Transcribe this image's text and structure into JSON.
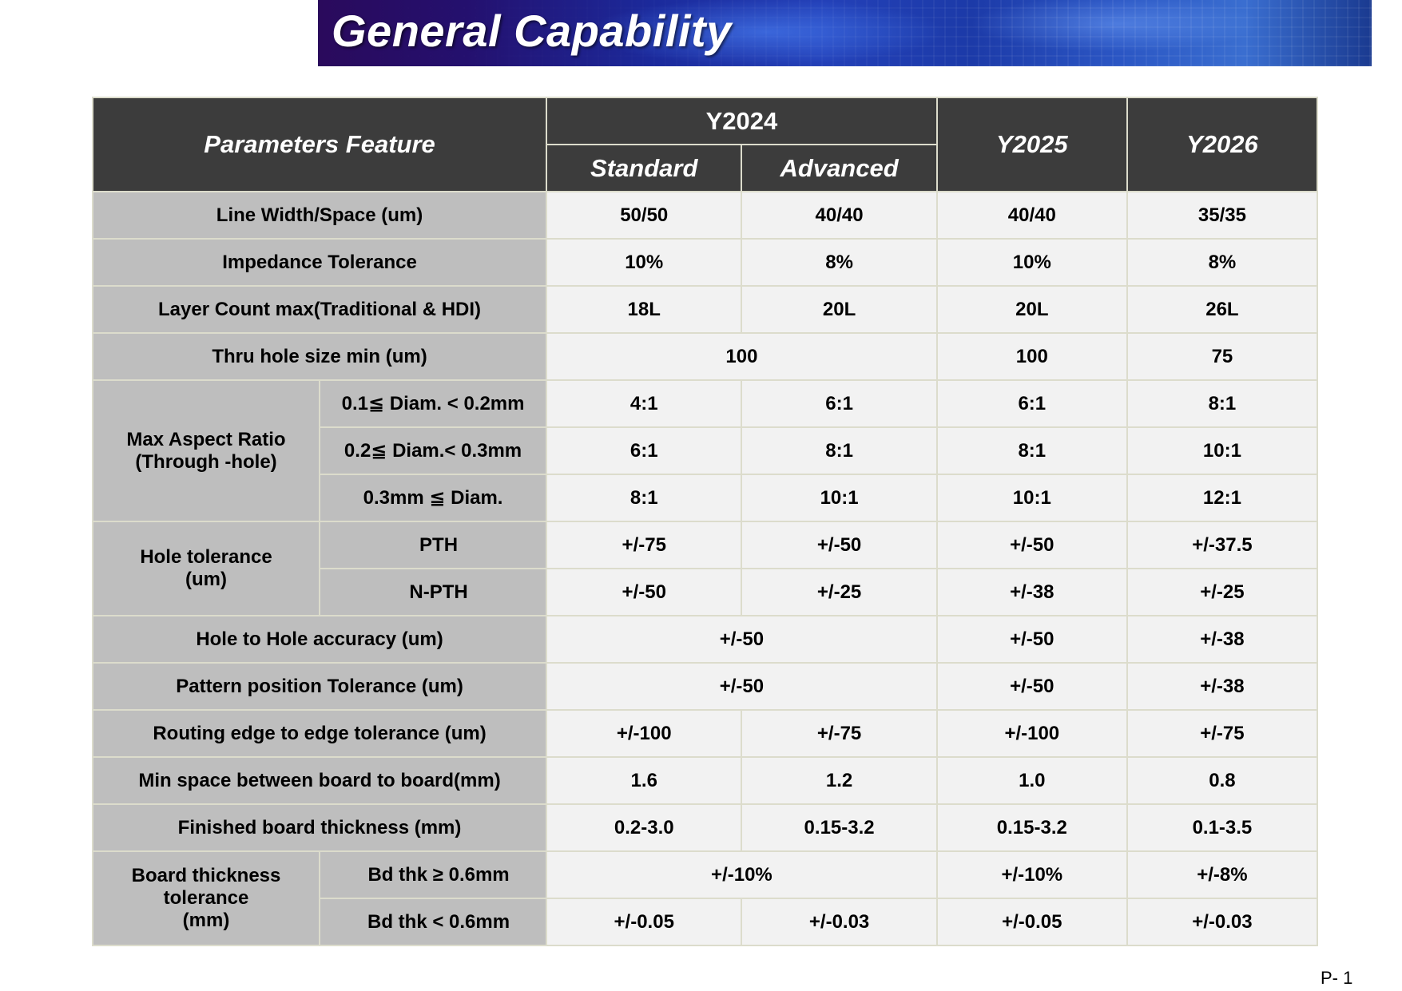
{
  "banner": {
    "title": "General Capability"
  },
  "table": {
    "header": {
      "param": "Parameters Feature",
      "y2024": "Y2024",
      "y2025": "Y2025",
      "y2026": "Y2026",
      "standard": "Standard",
      "advanced": "Advanced"
    },
    "rows": [
      {
        "label": "Line Width/Space  (um)",
        "std": "50/50",
        "adv": "40/40",
        "y2025": "40/40",
        "y2026": "35/35"
      },
      {
        "label": "Impedance Tolerance",
        "std": "10%",
        "adv": "8%",
        "y2025": "10%",
        "y2026": "8%"
      },
      {
        "label": "Layer Count max(Traditional & HDI)",
        "std": "18L",
        "adv": "20L",
        "y2025": "20L",
        "y2026": "26L"
      },
      {
        "label": "Thru hole size min (um)",
        "y2024": "100",
        "y2025": "100",
        "y2026": "75"
      }
    ],
    "aspect": {
      "label_line1": "Max Aspect Ratio",
      "label_line2": "(Through -hole)",
      "subs": [
        {
          "label": "0.1≦ Diam. < 0.2mm",
          "std": "4:1",
          "adv": "6:1",
          "y2025": "6:1",
          "y2026": "8:1"
        },
        {
          "label": "0.2≦ Diam.< 0.3mm",
          "std": "6:1",
          "adv": "8:1",
          "y2025": "8:1",
          "y2026": "10:1"
        },
        {
          "label": "0.3mm ≦ Diam.",
          "std": "8:1",
          "adv": "10:1",
          "y2025": "10:1",
          "y2026": "12:1"
        }
      ]
    },
    "hole_tol": {
      "label_line1": "Hole tolerance",
      "label_line2": "(um)",
      "subs": [
        {
          "label": "PTH",
          "std": "+/-75",
          "adv": "+/-50",
          "y2025": "+/-50",
          "y2026": "+/-37.5"
        },
        {
          "label": "N-PTH",
          "std": "+/-50",
          "adv": "+/-25",
          "y2025": "+/-38",
          "y2026": "+/-25"
        }
      ]
    },
    "rows2": [
      {
        "label": "Hole to Hole  accuracy (um)",
        "y2024": "+/-50",
        "y2025": "+/-50",
        "y2026": "+/-38"
      },
      {
        "label": "Pattern  position Tolerance (um)",
        "y2024": "+/-50",
        "y2025": "+/-50",
        "y2026": "+/-38"
      },
      {
        "label": "Routing edge to edge tolerance (um)",
        "std": "+/-100",
        "adv": "+/-75",
        "y2025": "+/-100",
        "y2026": "+/-75"
      },
      {
        "label": "Min space between board to board(mm)",
        "std": "1.6",
        "adv": "1.2",
        "y2025": "1.0",
        "y2026": "0.8"
      },
      {
        "label": "Finished board thickness (mm)",
        "std": "0.2-3.0",
        "adv": "0.15-3.2",
        "y2025": "0.15-3.2",
        "y2026": "0.1-3.5"
      }
    ],
    "bd_tol": {
      "label_line1": "Board thickness tolerance",
      "label_line2": "(mm)",
      "subs": [
        {
          "label": "Bd thk  ≥ 0.6mm",
          "y2024": "+/-10%",
          "y2025": "+/-10%",
          "y2026": "+/-8%"
        },
        {
          "label": "Bd thk  < 0.6mm",
          "std": "+/-0.05",
          "adv": "+/-0.03",
          "y2025": "+/-0.05",
          "y2026": "+/-0.03"
        }
      ]
    }
  },
  "footer": {
    "page": "P- 1"
  }
}
